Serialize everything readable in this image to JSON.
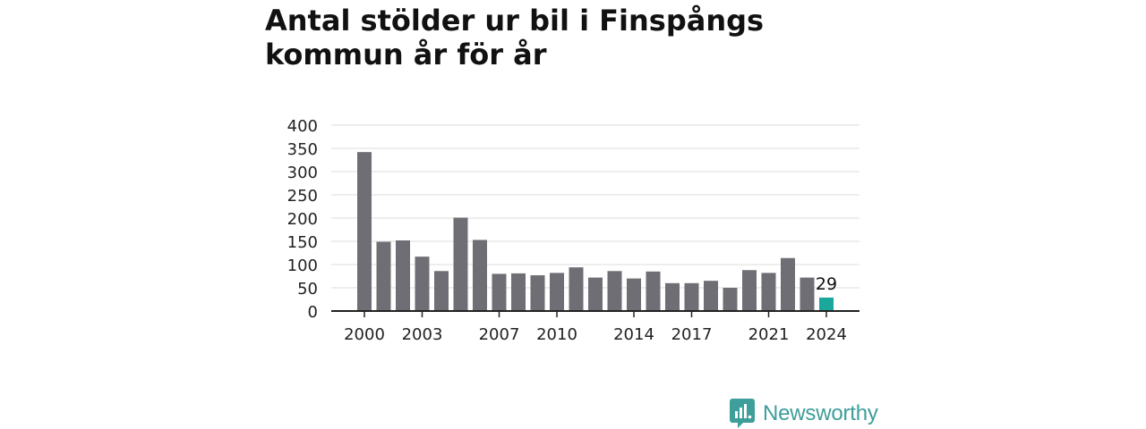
{
  "title": "Antal stölder ur bil i Finspångs kommun år för år",
  "brand": {
    "name": "Newsworthy",
    "icon": "newsworthy-logo-icon"
  },
  "colors": {
    "bar": "#6f6e74",
    "highlight": "#1aa89c",
    "grid": "#dcdcdc",
    "axis": "#222222"
  },
  "chart_data": {
    "type": "bar",
    "title": "Antal stölder ur bil i Finspångs kommun år för år",
    "xlabel": "",
    "ylabel": "",
    "ylim": [
      0,
      400
    ],
    "yticks": [
      0,
      50,
      100,
      150,
      200,
      250,
      300,
      350,
      400
    ],
    "xtick_labels": [
      "2000",
      "2003",
      "2007",
      "2010",
      "2014",
      "2017",
      "2021",
      "2024"
    ],
    "grid": true,
    "categories": [
      "2000",
      "2001",
      "2002",
      "2003",
      "2004",
      "2005",
      "2006",
      "2007",
      "2008",
      "2009",
      "2010",
      "2011",
      "2012",
      "2013",
      "2014",
      "2015",
      "2016",
      "2017",
      "2018",
      "2019",
      "2020",
      "2021",
      "2022",
      "2023",
      "2024"
    ],
    "values": [
      342,
      149,
      152,
      117,
      86,
      201,
      153,
      80,
      81,
      77,
      82,
      94,
      72,
      86,
      70,
      85,
      60,
      60,
      65,
      50,
      88,
      82,
      114,
      72,
      29
    ],
    "highlight": {
      "category": "2024",
      "label": "29"
    }
  }
}
